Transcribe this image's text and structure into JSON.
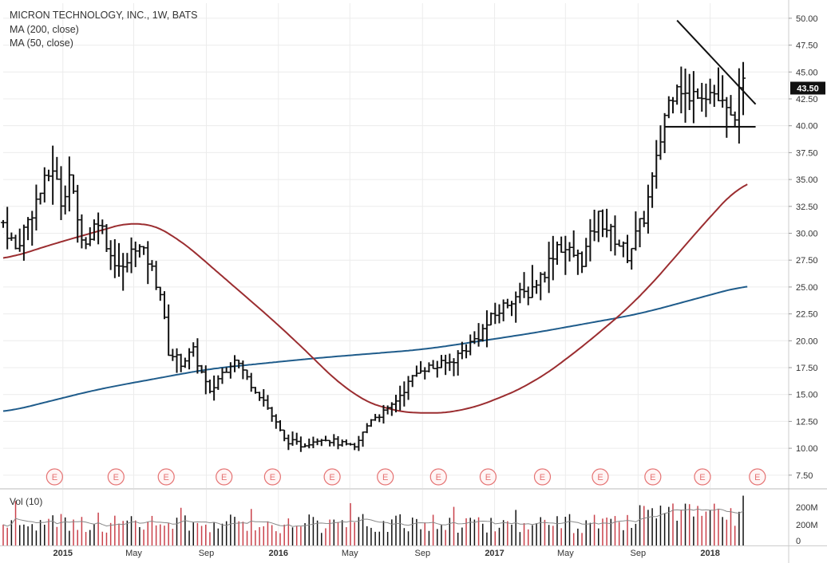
{
  "title": "MICRON TECHNOLOGY, INC., 1W, BATS",
  "legend": [
    "MA (200, close)",
    "MA (50, close)"
  ],
  "volume_label": "Vol (10)",
  "last_price_label": "43.50",
  "earnings_marker": "E",
  "colors": {
    "bars": "#111111",
    "ma50": "#9b2d30",
    "ma200": "#1f5c8b",
    "grid": "#ececec",
    "vol_down": "#c9414a",
    "vol_up": "#111111",
    "earnings": "#e57373",
    "price_tag_bg": "#111111",
    "price_tag_fg": "#ffffff"
  },
  "chart_data": {
    "type": "ohlc",
    "title": "MICRON TECHNOLOGY, INC., 1W, BATS",
    "price_axis": {
      "min": 7.5,
      "max": 50,
      "ticks": [
        "7.50",
        "10.00",
        "12.50",
        "15.00",
        "17.50",
        "20.00",
        "22.50",
        "25.00",
        "27.50",
        "30.00",
        "32.50",
        "35.00",
        "37.50",
        "40.00",
        "42.50",
        "45.00",
        "47.50",
        "50.00"
      ]
    },
    "volume_axis": {
      "ticks": [
        "0",
        "200M",
        "200M"
      ]
    },
    "x_ticks": [
      "2015",
      "May",
      "Sep",
      "2016",
      "May",
      "Sep",
      "2017",
      "May",
      "Sep",
      "2018"
    ],
    "x_tick_dates": [
      "2015-01-01",
      "2015-05-01",
      "2015-09-01",
      "2016-01-01",
      "2016-05-01",
      "2016-09-01",
      "2017-01-01",
      "2017-05-01",
      "2017-09-01",
      "2018-01-01"
    ],
    "date_range": [
      "2014-09-22",
      "2018-05-14"
    ],
    "earnings_dates": [
      "2014-12-18",
      "2015-04-01",
      "2015-06-25",
      "2015-10-01",
      "2015-12-22",
      "2016-04-01",
      "2016-06-30",
      "2016-09-28",
      "2016-12-21",
      "2017-03-23",
      "2017-06-29",
      "2017-09-26",
      "2017-12-19",
      "2018-03-22"
    ],
    "price_anchors": [
      [
        "2014-09-22",
        31.0
      ],
      [
        "2014-10-13",
        28.5
      ],
      [
        "2014-11-17",
        33.0
      ],
      [
        "2014-12-15",
        36.2
      ],
      [
        "2014-12-29",
        33.0
      ],
      [
        "2015-01-12",
        35.5
      ],
      [
        "2015-01-26",
        31.0
      ],
      [
        "2015-02-09",
        29.0
      ],
      [
        "2015-03-02",
        31.5
      ],
      [
        "2015-03-23",
        28.0
      ],
      [
        "2015-04-13",
        26.5
      ],
      [
        "2015-05-04",
        29.0
      ],
      [
        "2015-05-25",
        27.5
      ],
      [
        "2015-06-15",
        24.5
      ],
      [
        "2015-06-29",
        19.0
      ],
      [
        "2015-07-20",
        18.0
      ],
      [
        "2015-08-10",
        19.0
      ],
      [
        "2015-09-07",
        15.0
      ],
      [
        "2015-09-21",
        16.5
      ],
      [
        "2015-10-19",
        18.5
      ],
      [
        "2015-11-09",
        16.5
      ],
      [
        "2015-12-07",
        14.5
      ],
      [
        "2016-01-11",
        10.8
      ],
      [
        "2016-02-08",
        10.3
      ],
      [
        "2016-03-14",
        11.0
      ],
      [
        "2016-04-11",
        10.5
      ],
      [
        "2016-05-09",
        10.0
      ],
      [
        "2016-06-06",
        12.8
      ],
      [
        "2016-07-04",
        13.5
      ],
      [
        "2016-08-01",
        15.5
      ],
      [
        "2016-08-29",
        17.5
      ],
      [
        "2016-09-19",
        17.5
      ],
      [
        "2016-10-17",
        18.0
      ],
      [
        "2016-11-07",
        19.0
      ],
      [
        "2016-12-05",
        20.5
      ],
      [
        "2016-12-26",
        22.0
      ],
      [
        "2017-01-30",
        24.0
      ],
      [
        "2017-02-27",
        24.5
      ],
      [
        "2017-03-27",
        26.5
      ],
      [
        "2017-04-17",
        29.0
      ],
      [
        "2017-05-29",
        27.5
      ],
      [
        "2017-06-26",
        31.5
      ],
      [
        "2017-07-24",
        29.5
      ],
      [
        "2017-08-14",
        28.0
      ],
      [
        "2017-09-11",
        31.5
      ],
      [
        "2017-10-02",
        36.5
      ],
      [
        "2017-10-16",
        41.0
      ],
      [
        "2017-11-06",
        44.5
      ],
      [
        "2017-11-27",
        42.0
      ],
      [
        "2017-12-11",
        43.5
      ],
      [
        "2018-01-08",
        43.0
      ],
      [
        "2018-02-05",
        40.5
      ],
      [
        "2018-02-26",
        43.5
      ]
    ],
    "ma50_anchors": [
      [
        "2014-09-22",
        27.5
      ],
      [
        "2014-12-15",
        29.0
      ],
      [
        "2015-03-09",
        30.3
      ],
      [
        "2015-05-11",
        31.3
      ],
      [
        "2015-07-06",
        30.0
      ],
      [
        "2015-09-07",
        27.0
      ],
      [
        "2015-11-09",
        24.0
      ],
      [
        "2016-01-11",
        21.0
      ],
      [
        "2016-03-07",
        18.0
      ],
      [
        "2016-05-02",
        15.0
      ],
      [
        "2016-07-04",
        13.5
      ],
      [
        "2016-09-05",
        13.2
      ],
      [
        "2016-11-07",
        13.4
      ],
      [
        "2017-01-02",
        14.5
      ],
      [
        "2017-03-06",
        16.0
      ],
      [
        "2017-05-08",
        18.5
      ],
      [
        "2017-07-03",
        21.0
      ],
      [
        "2017-09-04",
        24.0
      ],
      [
        "2017-11-06",
        28.0
      ],
      [
        "2018-01-08",
        32.0
      ],
      [
        "2018-03-05",
        35.2
      ]
    ],
    "ma200_anchors": [
      [
        "2014-09-22",
        13.3
      ],
      [
        "2015-03-02",
        15.5
      ],
      [
        "2015-09-07",
        17.4
      ],
      [
        "2016-03-07",
        18.4
      ],
      [
        "2016-09-05",
        19.2
      ],
      [
        "2017-03-06",
        20.7
      ],
      [
        "2017-09-04",
        22.5
      ],
      [
        "2018-03-05",
        25.2
      ]
    ],
    "triangle_upper": [
      [
        "2017-11-06",
        49.8
      ],
      [
        "2018-03-19",
        42.0
      ]
    ],
    "triangle_base": [
      [
        "2017-10-16",
        39.9
      ],
      [
        "2018-03-19",
        39.9
      ]
    ],
    "last_price": 43.5
  }
}
